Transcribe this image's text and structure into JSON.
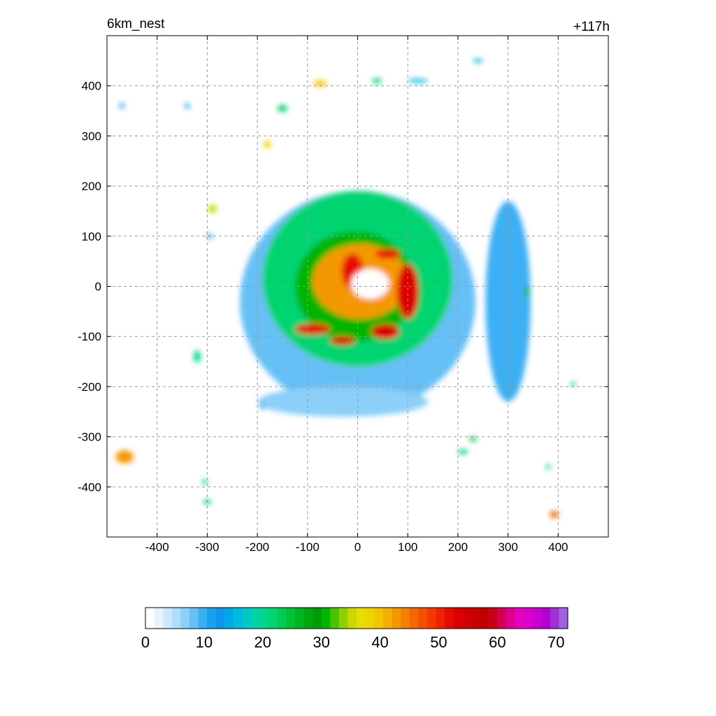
{
  "chart_data": {
    "type": "heatmap",
    "title": "6km_nest",
    "time_label": "+117h",
    "xlabel": "",
    "ylabel": "",
    "xlim": [
      -500,
      500
    ],
    "ylim": [
      -500,
      500
    ],
    "xticks": [
      -400,
      -300,
      -200,
      -100,
      0,
      100,
      200,
      300,
      400
    ],
    "yticks": [
      400,
      300,
      200,
      100,
      0,
      -100,
      -200,
      -300,
      -400
    ],
    "grid": true,
    "colorbar": {
      "min": 0,
      "max": 72,
      "ticks": [
        0,
        10,
        20,
        30,
        40,
        50,
        60,
        70
      ],
      "colors": [
        "#ffffff",
        "#e6f4fd",
        "#cce9fb",
        "#b0ddf9",
        "#8ccff8",
        "#66c0f6",
        "#3caff4",
        "#1aa0f0",
        "#0a96ea",
        "#00a8e8",
        "#00b9e0",
        "#00c8c8",
        "#00d2aa",
        "#00d68c",
        "#00d470",
        "#00cc55",
        "#00c038",
        "#00b41e",
        "#00a810",
        "#009c08",
        "#00b400",
        "#48c400",
        "#90d000",
        "#c8d800",
        "#e6de00",
        "#f0d400",
        "#f4c400",
        "#f4b000",
        "#f49800",
        "#f48000",
        "#f46800",
        "#f45000",
        "#f43800",
        "#f02000",
        "#e80c00",
        "#dc0000",
        "#d00000",
        "#c80000",
        "#c00000",
        "#c80018",
        "#d40050",
        "#e00090",
        "#e600c0",
        "#dc00cc",
        "#c800d0",
        "#b400d0",
        "#a030d0",
        "#a060e0"
      ]
    },
    "storm_center": [
      20,
      5
    ],
    "fields": [
      {
        "name": "outer_shield",
        "value": 8,
        "x": 0,
        "y": -30,
        "rx": 235,
        "ry": 220
      },
      {
        "name": "south_band",
        "value": 6,
        "x": -30,
        "y": -230,
        "rx": 170,
        "ry": 30
      },
      {
        "name": "east_band",
        "value": 9,
        "x": 300,
        "y": -30,
        "rx": 45,
        "ry": 200
      },
      {
        "name": "green_ring",
        "value": 22,
        "x": 0,
        "y": 15,
        "rx": 190,
        "ry": 175
      },
      {
        "name": "inner_mid",
        "value": 30,
        "x": -5,
        "y": 0,
        "rx": 120,
        "ry": 110
      },
      {
        "name": "core",
        "value": 42,
        "x": 5,
        "y": 10,
        "rx": 95,
        "ry": 75
      },
      {
        "name": "eyewall_w",
        "value": 52,
        "x": -10,
        "y": 30,
        "rx": 22,
        "ry": 35
      },
      {
        "name": "eyewall_e",
        "value": 53,
        "x": 100,
        "y": -10,
        "rx": 22,
        "ry": 55
      },
      {
        "name": "eyewall_n",
        "value": 52,
        "x": 60,
        "y": 65,
        "rx": 25,
        "ry": 10
      },
      {
        "name": "band_sw",
        "value": 52,
        "x": -90,
        "y": -85,
        "rx": 35,
        "ry": 11
      },
      {
        "name": "band_s",
        "value": 53,
        "x": -30,
        "y": -108,
        "rx": 25,
        "ry": 9
      },
      {
        "name": "band_se",
        "value": 53,
        "x": 55,
        "y": -90,
        "rx": 28,
        "ry": 15
      },
      {
        "name": "eye",
        "value": 0,
        "x": 25,
        "y": 5,
        "rx": 38,
        "ry": 30
      },
      {
        "name": "cell",
        "value": 42,
        "x": -465,
        "y": -340,
        "rx": 18,
        "ry": 13
      },
      {
        "name": "cell",
        "value": 38,
        "x": -180,
        "y": 283,
        "rx": 8,
        "ry": 7
      },
      {
        "name": "cell",
        "value": 40,
        "x": -75,
        "y": 405,
        "rx": 14,
        "ry": 6
      },
      {
        "name": "cell",
        "value": 35,
        "x": -290,
        "y": 155,
        "rx": 9,
        "ry": 8
      },
      {
        "name": "cell",
        "value": 22,
        "x": -150,
        "y": 355,
        "rx": 10,
        "ry": 7
      },
      {
        "name": "cell",
        "value": 45,
        "x": 392,
        "y": -455,
        "rx": 9,
        "ry": 7
      },
      {
        "name": "cell",
        "value": 22,
        "x": 38,
        "y": 410,
        "rx": 10,
        "ry": 5
      },
      {
        "name": "cell",
        "value": 25,
        "x": 338,
        "y": -10,
        "rx": 6,
        "ry": 10
      },
      {
        "name": "cell",
        "value": 22,
        "x": -300,
        "y": -430,
        "rx": 8,
        "ry": 5
      },
      {
        "name": "cell",
        "value": 22,
        "x": -305,
        "y": -390,
        "rx": 6,
        "ry": 5
      },
      {
        "name": "cell",
        "value": 22,
        "x": 210,
        "y": -330,
        "rx": 10,
        "ry": 5
      },
      {
        "name": "cell",
        "value": 25,
        "x": 230,
        "y": -305,
        "rx": 7,
        "ry": 5
      },
      {
        "name": "cell",
        "value": 15,
        "x": 240,
        "y": 450,
        "rx": 10,
        "ry": 4
      },
      {
        "name": "cell",
        "value": 12,
        "x": -470,
        "y": 360,
        "rx": 5,
        "ry": 5
      },
      {
        "name": "cell",
        "value": 12,
        "x": -340,
        "y": 360,
        "rx": 5,
        "ry": 5
      },
      {
        "name": "cell",
        "value": 20,
        "x": -320,
        "y": -140,
        "rx": 7,
        "ry": 12
      },
      {
        "name": "cell",
        "value": 20,
        "x": 430,
        "y": -195,
        "rx": 5,
        "ry": 5
      },
      {
        "name": "cell",
        "value": 20,
        "x": 380,
        "y": -360,
        "rx": 5,
        "ry": 5
      },
      {
        "name": "cell",
        "value": 15,
        "x": 120,
        "y": 410,
        "rx": 20,
        "ry": 4
      },
      {
        "name": "cell",
        "value": 12,
        "x": -295,
        "y": 100,
        "rx": 5,
        "ry": 5
      },
      {
        "name": "cell",
        "value": 12,
        "x": -190,
        "y": -240,
        "rx": 5,
        "ry": 5
      }
    ]
  }
}
